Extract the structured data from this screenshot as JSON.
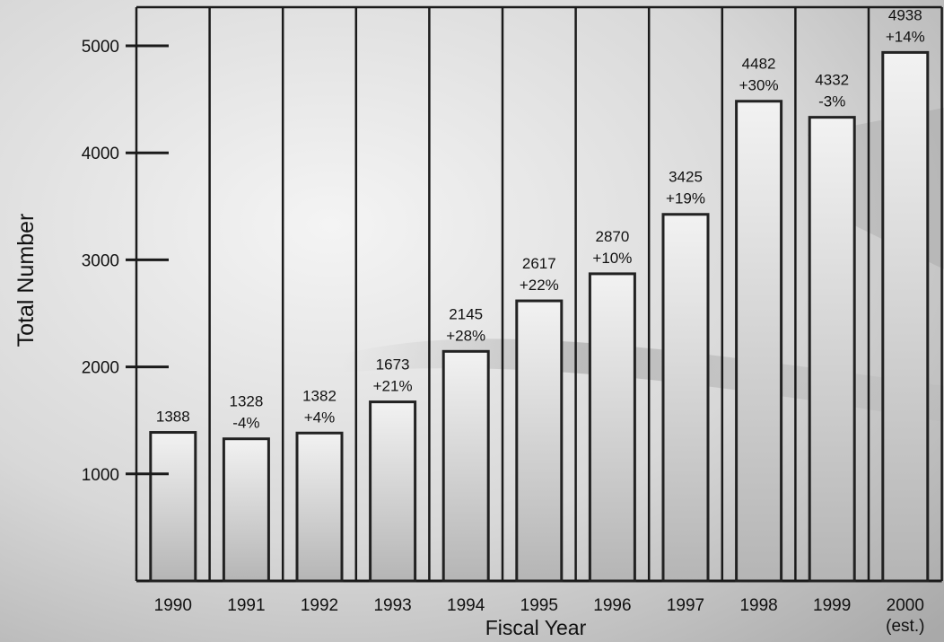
{
  "chart_data": {
    "type": "bar",
    "xlabel": "Fiscal Year",
    "ylabel": "Total Number",
    "categories": [
      "1990",
      "1991",
      "1992",
      "1993",
      "1994",
      "1995",
      "1996",
      "1997",
      "1998",
      "1999",
      "2000"
    ],
    "category_notes": [
      "",
      "",
      "",
      "",
      "",
      "",
      "",
      "",
      "",
      "",
      "(est.)"
    ],
    "values": [
      1388,
      1328,
      1382,
      1673,
      2145,
      2617,
      2870,
      3425,
      4482,
      4332,
      4938
    ],
    "value_labels": [
      "1388",
      "1328",
      "1382",
      "1673",
      "2145",
      "2617",
      "2870",
      "3425",
      "4482",
      "4332",
      "4938"
    ],
    "change_labels": [
      "",
      "-4%",
      "+4%",
      "+21%",
      "+28%",
      "+22%",
      "+10%",
      "+19%",
      "+30%",
      "-3%",
      "+14%"
    ],
    "yticks": [
      1000,
      2000,
      3000,
      4000,
      5000
    ],
    "ylim": [
      0,
      5400
    ],
    "grid": false,
    "bar_fill_top": "#f2f2f2",
    "bar_fill_bottom": "#b5b5b5",
    "bar_outline": "#222222"
  }
}
